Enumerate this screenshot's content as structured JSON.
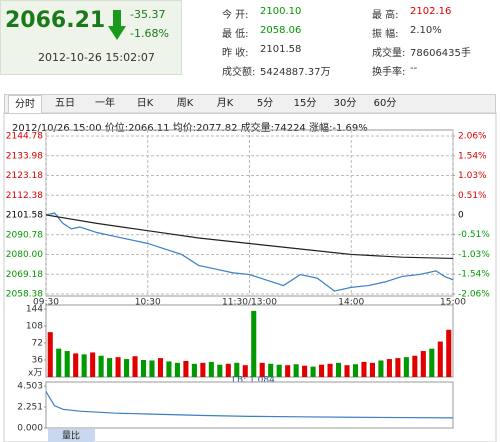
{
  "quote": {
    "price": "2066.21",
    "change": "-35.37",
    "change_pct": "-1.68%",
    "time": "2012-10-26 15:02:07"
  },
  "stats": [
    {
      "label": "今 开:",
      "value": "2100.10",
      "color": "#009900"
    },
    {
      "label": "最 高:",
      "value": "2102.16",
      "color": "#e00000"
    },
    {
      "label": "最 低:",
      "value": "2058.06",
      "color": "#009900"
    },
    {
      "label": "振 幅:",
      "value": "2.10%",
      "color": "#333333"
    },
    {
      "label": "昨 收:",
      "value": "2101.58",
      "color": "#333333"
    },
    {
      "label": "成交量:",
      "value": "78606435手",
      "color": "#333333"
    },
    {
      "label": "成交额:",
      "value": "5424887.37万",
      "color": "#333333"
    },
    {
      "label": "换手率:",
      "value": "--",
      "color": "#333333"
    }
  ],
  "tabs": [
    "分时",
    "五日",
    "一年",
    "日K",
    "周K",
    "月K",
    "5分",
    "15分",
    "30分",
    "60分"
  ],
  "info_line": "2012/10/26 15:00  价位:2066.11  均价:2077.82  成交量:74224  涨幅:-1.69%",
  "chart_data": [
    {
      "type": "line",
      "xlim": [
        0,
        240
      ],
      "xticks": [
        {
          "value": 0,
          "label": "09:30"
        },
        {
          "value": 60,
          "label": "10:30"
        },
        {
          "value": 120,
          "label": "11:30/13:00"
        },
        {
          "value": 180,
          "label": "14:00"
        },
        {
          "value": 240,
          "label": "15:00"
        }
      ],
      "ylim": [
        2058.38,
        2144.78
      ],
      "yticks": [
        2144.78,
        2133.98,
        2123.18,
        2112.38,
        2101.58,
        2090.78,
        {
          "value": 2080,
          "label": "2080.00"
        },
        2069.18,
        2058.38
      ],
      "y2lim": [
        -2.06,
        2.06
      ],
      "y2ticks": [
        {
          "value": 2.06,
          "label": "2.06%"
        },
        {
          "value": 1.54,
          "label": "1.54%"
        },
        {
          "value": 1.03,
          "label": "1.03%"
        },
        {
          "value": 0.51,
          "label": "0.51%"
        },
        0,
        {
          "value": -0.51,
          "label": "-0.51%"
        },
        {
          "value": -1.03,
          "label": "-1.03%"
        },
        {
          "value": -1.54,
          "label": "-1.54%"
        },
        {
          "value": -2.06,
          "label": "-2.06%"
        }
      ],
      "grid": true,
      "series": [
        {
          "color": "#3a7fc8",
          "x": [
            0,
            5,
            10,
            15,
            20,
            30,
            40,
            50,
            60,
            70,
            80,
            90,
            100,
            110,
            120,
            130,
            140,
            150,
            160,
            170,
            180,
            190,
            200,
            210,
            220,
            230,
            235,
            240
          ],
          "values": [
            2101.6,
            2102.7,
            2097,
            2094,
            2095,
            2092,
            2090,
            2088,
            2086,
            2083,
            2080,
            2074,
            2072,
            2070,
            2069,
            2066,
            2063,
            2069,
            2067,
            2060,
            2062,
            2063,
            2065,
            2068,
            2069,
            2071,
            2068,
            2066.11
          ]
        },
        {
          "color": "#222222",
          "x": [
            0,
            30,
            60,
            90,
            120,
            150,
            180,
            210,
            240
          ],
          "values": [
            2101.6,
            2097,
            2093,
            2089,
            2086,
            2083,
            2080,
            2078.5,
            2077.82
          ]
        }
      ]
    },
    {
      "type": "bar",
      "unit": "x万",
      "annotation": "LB: 1.084",
      "xlim": [
        0,
        240
      ],
      "ylim": [
        0,
        144
      ],
      "yticks": [
        144,
        108,
        72,
        36
      ],
      "values": [
        95,
        60,
        55,
        50,
        48,
        52,
        45,
        40,
        42,
        38,
        44,
        36,
        35,
        40,
        33,
        30,
        34,
        28,
        30,
        32,
        26,
        28,
        30,
        25,
        140,
        30,
        28,
        26,
        25,
        27,
        24,
        22,
        26,
        28,
        30,
        25,
        27,
        32,
        30,
        35,
        38,
        40,
        42,
        45,
        55,
        60,
        75,
        100
      ],
      "colors": [
        "#e00000",
        "#009900",
        "#009900",
        "#e00000",
        "#009900",
        "#e00000",
        "#009900",
        "#009900",
        "#e00000",
        "#009900",
        "#e00000",
        "#009900",
        "#009900",
        "#e00000",
        "#009900",
        "#009900",
        "#e00000",
        "#009900",
        "#e00000",
        "#009900",
        "#009900",
        "#e00000",
        "#009900",
        "#e00000",
        "#009900",
        "#e00000",
        "#009900",
        "#009900",
        "#e00000",
        "#009900",
        "#e00000",
        "#009900",
        "#e00000",
        "#e00000",
        "#009900",
        "#e00000",
        "#009900",
        "#e00000",
        "#e00000",
        "#009900",
        "#e00000",
        "#e00000",
        "#009900",
        "#e00000",
        "#e00000",
        "#009900",
        "#e00000",
        "#e00000"
      ]
    },
    {
      "type": "line",
      "title": "量比",
      "xlim": [
        0,
        240
      ],
      "ylim": [
        0,
        4.503
      ],
      "yticks": [
        4.503,
        2.251,
        {
          "value": 0,
          "label": "0.000"
        }
      ],
      "series": [
        {
          "color": "#3a7fc8",
          "x": [
            0,
            5,
            10,
            20,
            40,
            60,
            90,
            120,
            150,
            180,
            210,
            240
          ],
          "values": [
            3.9,
            2.4,
            2.0,
            1.8,
            1.6,
            1.5,
            1.35,
            1.25,
            1.2,
            1.15,
            1.12,
            1.084
          ]
        }
      ]
    }
  ]
}
